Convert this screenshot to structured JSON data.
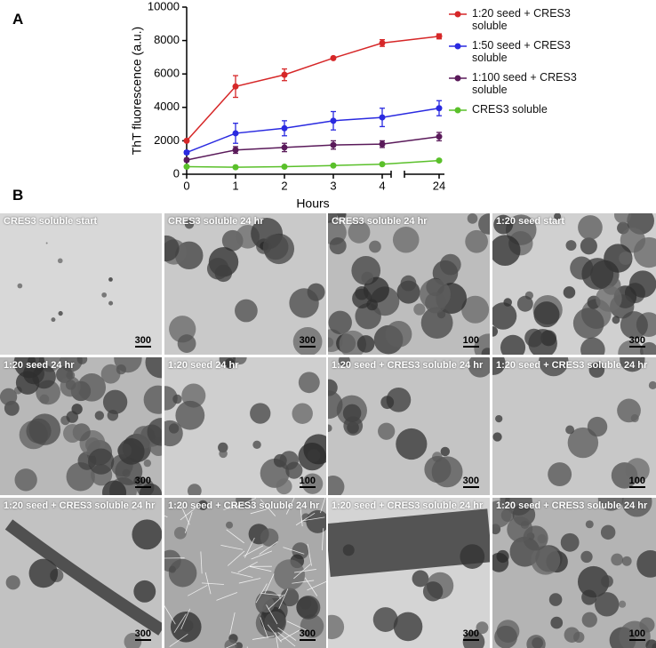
{
  "chart_data": {
    "type": "line",
    "panel_label": "A",
    "y_label": "ThT fluorescence (a.u.)",
    "x_label": "Hours",
    "categories": [
      "0",
      "1",
      "2",
      "3",
      "4",
      "24"
    ],
    "ylim": [
      0,
      10000
    ],
    "yticks": [
      0,
      2000,
      4000,
      6000,
      8000,
      10000
    ],
    "series": [
      {
        "name": "1:20 seed + CRES3 soluble",
        "color": "#d62728",
        "values": [
          2000,
          5250,
          5950,
          6950,
          7850,
          8250
        ],
        "errors": [
          0,
          650,
          350,
          50,
          200,
          150
        ]
      },
      {
        "name": "1:50 seed + CRES3 soluble",
        "color": "#2a2ae0",
        "values": [
          1300,
          2450,
          2750,
          3200,
          3400,
          3950
        ],
        "errors": [
          100,
          600,
          450,
          550,
          550,
          450
        ]
      },
      {
        "name": "1:100 seed + CRES3 soluble",
        "color": "#5a1a5a",
        "values": [
          850,
          1450,
          1600,
          1750,
          1800,
          2250
        ],
        "errors": [
          100,
          200,
          250,
          250,
          200,
          250
        ]
      },
      {
        "name": "CRES3 soluble",
        "color": "#5ac02a",
        "values": [
          450,
          420,
          450,
          520,
          600,
          820
        ],
        "errors": [
          50,
          40,
          50,
          50,
          60,
          60
        ]
      }
    ]
  },
  "micrographs": {
    "panel_label": "B",
    "images": [
      {
        "caption": "CRES3 soluble start",
        "scale_bar": "300"
      },
      {
        "caption": "CRES3 soluble 24 hr",
        "scale_bar": "300"
      },
      {
        "caption": "CRES3 soluble 24 hr",
        "scale_bar": "100"
      },
      {
        "caption": "1:20 seed start",
        "scale_bar": "300"
      },
      {
        "caption": "1:20 seed 24 hr",
        "scale_bar": "300"
      },
      {
        "caption": "1:20 seed 24 hr",
        "scale_bar": "100"
      },
      {
        "caption": "1:20 seed + CRES3 soluble 24 hr",
        "scale_bar": "300"
      },
      {
        "caption": "1:20 seed + CRES3 soluble 24 hr",
        "scale_bar": "100"
      },
      {
        "caption": "1:20 seed + CRES3 soluble 24 hr",
        "scale_bar": "300"
      },
      {
        "caption": "1:20 seed  + CRES3 soluble 24 hr",
        "scale_bar": "300"
      },
      {
        "caption": "1:20 seed + CRES3 soluble 24 hr",
        "scale_bar": "300"
      },
      {
        "caption": "1:20 seed + CRES3 soluble 24 hr",
        "scale_bar": "100"
      }
    ]
  }
}
